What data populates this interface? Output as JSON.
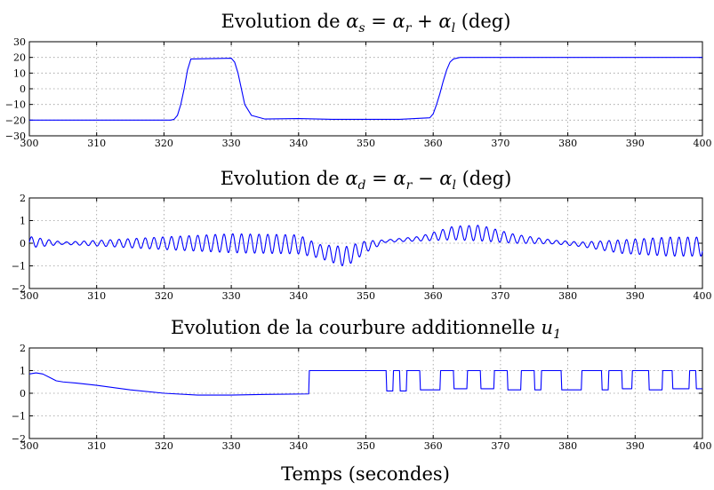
{
  "chart_data": [
    {
      "type": "line",
      "title": "Evolution de αs = αr + αl (deg)",
      "title_parts": {
        "prefix": "Evolution de ",
        "symbol": "α",
        "sub": "s",
        "rest1": " = ",
        "sym2": "α",
        "sub2": "r",
        "rest2": " + ",
        "sym3": "α",
        "sub3": "l",
        "suffix": " (deg)"
      },
      "xlim": [
        300,
        400
      ],
      "ylim": [
        -30,
        30
      ],
      "xticks": [
        "300",
        "310",
        "320",
        "330",
        "340",
        "350",
        "360",
        "370",
        "380",
        "390",
        "400"
      ],
      "yticks": [
        "30",
        "20",
        "10",
        "0",
        "−10",
        "−20",
        "−30"
      ],
      "grid": true,
      "series": [
        {
          "x": [
            300,
            321,
            321.5,
            322,
            322.5,
            323,
            323.5,
            324,
            330,
            330.5,
            331,
            331.5,
            332,
            333,
            335,
            340,
            345,
            355,
            359.5,
            360,
            360.5,
            361,
            361.5,
            362,
            362.5,
            363,
            364,
            400
          ],
          "values": [
            -20,
            -20,
            -19.5,
            -17,
            -10,
            0,
            12,
            19,
            19.5,
            17,
            10,
            0,
            -10,
            -17,
            -19.3,
            -19,
            -19.5,
            -19.5,
            -18.5,
            -16,
            -10,
            -3,
            5,
            12,
            17,
            19,
            20,
            20
          ],
          "color": "#0000ff"
        }
      ]
    },
    {
      "type": "line",
      "title": "Evolution de αd = αr − αl (deg)",
      "title_parts": {
        "prefix": "Evolution de ",
        "symbol": "α",
        "sub": "d",
        "rest1": " = ",
        "sym2": "α",
        "sub2": "r",
        "rest2": " − ",
        "sym3": "α",
        "sub3": "l",
        "suffix": " (deg)"
      },
      "xlim": [
        300,
        400
      ],
      "ylim": [
        -2,
        2
      ],
      "xticks": [
        "300",
        "310",
        "320",
        "330",
        "340",
        "350",
        "360",
        "370",
        "380",
        "390",
        "400"
      ],
      "yticks": [
        "2",
        "1",
        "0",
        "−1",
        "−2"
      ],
      "grid": true,
      "oscillation": {
        "period_s": 1.3,
        "segments": [
          {
            "x": 300,
            "center": 0.05,
            "amplitude": 0.25
          },
          {
            "x": 305,
            "center": 0.0,
            "amplitude": 0.05
          },
          {
            "x": 310,
            "center": 0.0,
            "amplitude": 0.12
          },
          {
            "x": 320,
            "center": 0.0,
            "amplitude": 0.28
          },
          {
            "x": 330,
            "center": 0.0,
            "amplitude": 0.42
          },
          {
            "x": 340,
            "center": -0.05,
            "amplitude": 0.42
          },
          {
            "x": 343,
            "center": -0.35,
            "amplitude": 0.3
          },
          {
            "x": 347,
            "center": -0.6,
            "amplitude": 0.45
          },
          {
            "x": 350,
            "center": -0.15,
            "amplitude": 0.25
          },
          {
            "x": 353,
            "center": 0.1,
            "amplitude": 0.05
          },
          {
            "x": 358,
            "center": 0.2,
            "amplitude": 0.1
          },
          {
            "x": 363,
            "center": 0.45,
            "amplitude": 0.3
          },
          {
            "x": 367,
            "center": 0.45,
            "amplitude": 0.35
          },
          {
            "x": 372,
            "center": 0.2,
            "amplitude": 0.2
          },
          {
            "x": 378,
            "center": 0.05,
            "amplitude": 0.08
          },
          {
            "x": 382,
            "center": -0.05,
            "amplitude": 0.1
          },
          {
            "x": 388,
            "center": -0.15,
            "amplitude": 0.3
          },
          {
            "x": 395,
            "center": -0.15,
            "amplitude": 0.42
          },
          {
            "x": 400,
            "center": -0.15,
            "amplitude": 0.42
          }
        ],
        "color": "#0000ff"
      }
    },
    {
      "type": "line",
      "title": "Evolution de la courbure additionnelle u1",
      "title_parts": {
        "prefix": "Evolution de la courbure additionnelle ",
        "symbol": "u",
        "sub": "1"
      },
      "xlim": [
        300,
        400
      ],
      "ylim": [
        -2,
        2
      ],
      "xticks": [
        "300",
        "310",
        "320",
        "330",
        "340",
        "350",
        "360",
        "370",
        "380",
        "390",
        "400"
      ],
      "yticks": [
        "2",
        "1",
        "0",
        "−1",
        "−2"
      ],
      "grid": true,
      "series": [
        {
          "x": [
            300,
            301,
            302,
            303,
            304,
            305,
            307,
            310,
            315,
            320,
            325,
            330,
            335,
            341.5,
            341.6,
            353,
            353.1,
            354,
            354.1,
            355,
            355.1,
            356,
            356.1,
            358,
            358.1,
            361,
            361.1,
            363,
            363.1,
            365,
            365.1,
            367,
            367.1,
            369,
            369.1,
            371,
            371.1,
            373,
            373.1,
            375,
            375.1,
            376,
            376.1,
            379,
            379.1,
            382,
            382.1,
            385,
            385.1,
            386,
            386.1,
            388,
            388.1,
            389.5,
            389.6,
            392,
            392.1,
            394,
            394.1,
            395.5,
            395.6,
            398,
            398.1,
            399,
            399.1,
            400
          ],
          "values": [
            0.85,
            0.9,
            0.85,
            0.7,
            0.55,
            0.5,
            0.45,
            0.35,
            0.15,
            0.0,
            -0.08,
            -0.08,
            -0.05,
            -0.03,
            1.0,
            1.0,
            0.1,
            0.1,
            1.0,
            1.0,
            0.1,
            0.1,
            1.0,
            1.0,
            0.15,
            0.15,
            1.0,
            1.0,
            0.2,
            0.2,
            1.0,
            1.0,
            0.2,
            0.2,
            1.0,
            1.0,
            0.15,
            0.15,
            1.0,
            1.0,
            0.15,
            0.15,
            1.0,
            1.0,
            0.15,
            0.15,
            1.0,
            1.0,
            0.15,
            0.15,
            1.0,
            1.0,
            0.2,
            0.2,
            1.0,
            1.0,
            0.15,
            0.15,
            1.0,
            1.0,
            0.2,
            0.2,
            1.0,
            1.0,
            0.2,
            0.2
          ],
          "color": "#0000ff"
        }
      ]
    }
  ],
  "xlabel": "Temps (secondes)"
}
